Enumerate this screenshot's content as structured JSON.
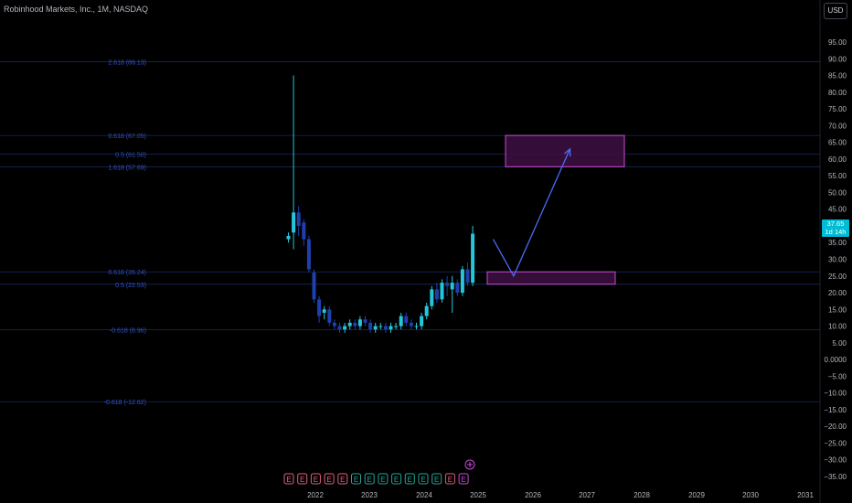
{
  "header": {
    "symbol_title": "Robinhood Markets, Inc., 1M, NASDAQ",
    "currency_button": "USD"
  },
  "price_tag": {
    "price": "37.65",
    "countdown": "1d 14h"
  },
  "colors": {
    "background": "#000000",
    "up_candle": "#26c6da",
    "down_candle": "#1e40af",
    "fib_label": "#3154c9",
    "zone_border": "#c84bd6",
    "zone_fill": "#3a0f3f",
    "arrow": "#4a6cf7",
    "price_tag": "#00bcd4"
  },
  "chart_data": {
    "type": "candlestick",
    "price_axis": {
      "min": -35,
      "max": 95,
      "ticks": [
        "95.00",
        "90.00",
        "85.00",
        "80.00",
        "75.00",
        "70.00",
        "65.00",
        "60.00",
        "55.00",
        "50.00",
        "45.00",
        "40.00",
        "35.00",
        "30.00",
        "25.00",
        "20.00",
        "15.00",
        "10.00",
        "5.00",
        "0.0000",
        "−5.00",
        "−10.00",
        "−15.00",
        "−20.00",
        "−25.00",
        "−30.00",
        "−35.00"
      ]
    },
    "time_axis": {
      "labels": [
        "2022",
        "2023",
        "2024",
        "2025",
        "2026",
        "2027",
        "2028",
        "2029",
        "2030",
        "2031"
      ]
    },
    "fib_levels": [
      {
        "label": "2.618 (89.13)",
        "value": 89.13
      },
      {
        "label": "0.618 (67.05)",
        "value": 67.05
      },
      {
        "label": "0.5 (61.50)",
        "value": 61.5
      },
      {
        "label": "1.618 (57.69)",
        "value": 57.69
      },
      {
        "label": "0.618 (26.24)",
        "value": 26.24
      },
      {
        "label": "0.5 (22.53)",
        "value": 22.53
      },
      {
        "label": "-0.618 (8.96)",
        "value": 8.96
      },
      {
        "label": "-0.618 (-12.62)",
        "value": -12.62
      }
    ],
    "candles": [
      {
        "o": 36,
        "h": 38,
        "l": 35,
        "c": 37
      },
      {
        "o": 38,
        "h": 85,
        "l": 33,
        "c": 44
      },
      {
        "o": 44,
        "h": 46,
        "l": 37,
        "c": 40
      },
      {
        "o": 41,
        "h": 42,
        "l": 34,
        "c": 36
      },
      {
        "o": 36,
        "h": 37,
        "l": 26,
        "c": 27
      },
      {
        "o": 26,
        "h": 27,
        "l": 17,
        "c": 18
      },
      {
        "o": 18,
        "h": 19,
        "l": 11,
        "c": 13
      },
      {
        "o": 14,
        "h": 16,
        "l": 12,
        "c": 15
      },
      {
        "o": 15,
        "h": 16,
        "l": 10,
        "c": 11
      },
      {
        "o": 11,
        "h": 12,
        "l": 9,
        "c": 10
      },
      {
        "o": 10,
        "h": 11,
        "l": 8,
        "c": 9
      },
      {
        "o": 9,
        "h": 11,
        "l": 8,
        "c": 10
      },
      {
        "o": 10,
        "h": 12,
        "l": 9,
        "c": 11
      },
      {
        "o": 11,
        "h": 12,
        "l": 9,
        "c": 10
      },
      {
        "o": 10,
        "h": 13,
        "l": 9,
        "c": 12
      },
      {
        "o": 12,
        "h": 13,
        "l": 10,
        "c": 11
      },
      {
        "o": 11,
        "h": 12,
        "l": 8,
        "c": 9
      },
      {
        "o": 9,
        "h": 11,
        "l": 8,
        "c": 10
      },
      {
        "o": 10,
        "h": 11,
        "l": 9,
        "c": 10
      },
      {
        "o": 10,
        "h": 11,
        "l": 8,
        "c": 9
      },
      {
        "o": 9,
        "h": 11,
        "l": 8,
        "c": 10
      },
      {
        "o": 10,
        "h": 11,
        "l": 9,
        "c": 10
      },
      {
        "o": 10,
        "h": 14,
        "l": 9,
        "c": 13
      },
      {
        "o": 13,
        "h": 14,
        "l": 10,
        "c": 11
      },
      {
        "o": 11,
        "h": 12,
        "l": 9,
        "c": 10
      },
      {
        "o": 10,
        "h": 11,
        "l": 9,
        "c": 10
      },
      {
        "o": 10,
        "h": 14,
        "l": 9,
        "c": 13
      },
      {
        "o": 13,
        "h": 17,
        "l": 12,
        "c": 16
      },
      {
        "o": 16,
        "h": 22,
        "l": 15,
        "c": 21
      },
      {
        "o": 21,
        "h": 23,
        "l": 17,
        "c": 18
      },
      {
        "o": 18,
        "h": 24,
        "l": 17,
        "c": 23
      },
      {
        "o": 23,
        "h": 25,
        "l": 19,
        "c": 22
      },
      {
        "o": 21,
        "h": 25,
        "l": 14,
        "c": 23
      },
      {
        "o": 23,
        "h": 24,
        "l": 19,
        "c": 20
      },
      {
        "o": 20,
        "h": 28,
        "l": 19,
        "c": 27
      },
      {
        "o": 27,
        "h": 29,
        "l": 22,
        "c": 23
      },
      {
        "o": 23,
        "h": 40,
        "l": 22,
        "c": 37.65
      }
    ],
    "earnings_markers": [
      "E",
      "E",
      "E",
      "E",
      "E",
      "E",
      "E",
      "E",
      "E",
      "E",
      "E",
      "E",
      "E",
      "E"
    ],
    "zones": [
      {
        "from_value": 22.53,
        "to_value": 26.24
      },
      {
        "from_value": 57.69,
        "to_value": 67.05
      }
    ],
    "projection_path": [
      {
        "candle_index": 40,
        "value": 36
      },
      {
        "candle_index": 44,
        "value": 25
      },
      {
        "candle_index": 55,
        "value": 63
      }
    ]
  }
}
